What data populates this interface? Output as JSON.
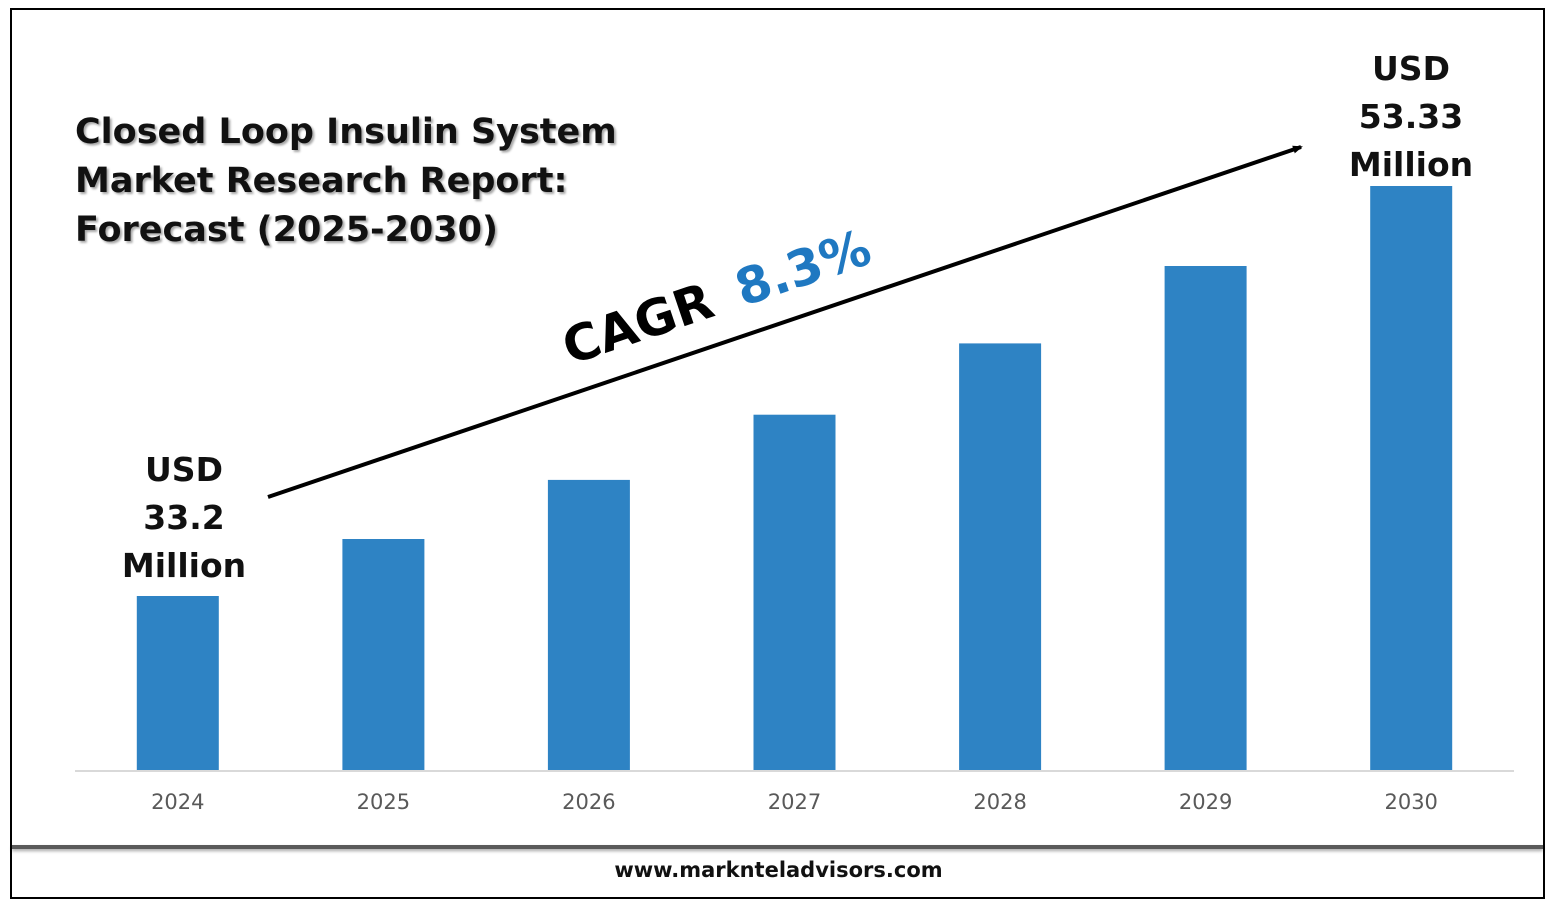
{
  "chart_data": {
    "type": "bar",
    "title": "Closed Loop Insulin System Market Research Report: Forecast (2025-2030)",
    "title_lines": [
      "Closed Loop Insulin System",
      "Market Research Report:",
      "Forecast (2025-2030)"
    ],
    "categories": [
      "2024",
      "2025",
      "2026",
      "2027",
      "2028",
      "2029",
      "2030"
    ],
    "values": [
      33.2,
      36.0,
      38.9,
      42.1,
      45.6,
      49.4,
      53.33
    ],
    "ylim": [
      0,
      53.33
    ],
    "grid": false,
    "bar_color": "#2e83c4",
    "annotations": {
      "start": {
        "lines": [
          "USD",
          "33.2",
          "Million"
        ]
      },
      "end": {
        "lines": [
          "USD",
          "53.33",
          "Million"
        ]
      },
      "cagr_prefix": "CAGR",
      "cagr_value": "8.3%",
      "cagr_color": "#1f78c1"
    }
  },
  "footer": {
    "url": "www.marknteladvisors.com"
  }
}
